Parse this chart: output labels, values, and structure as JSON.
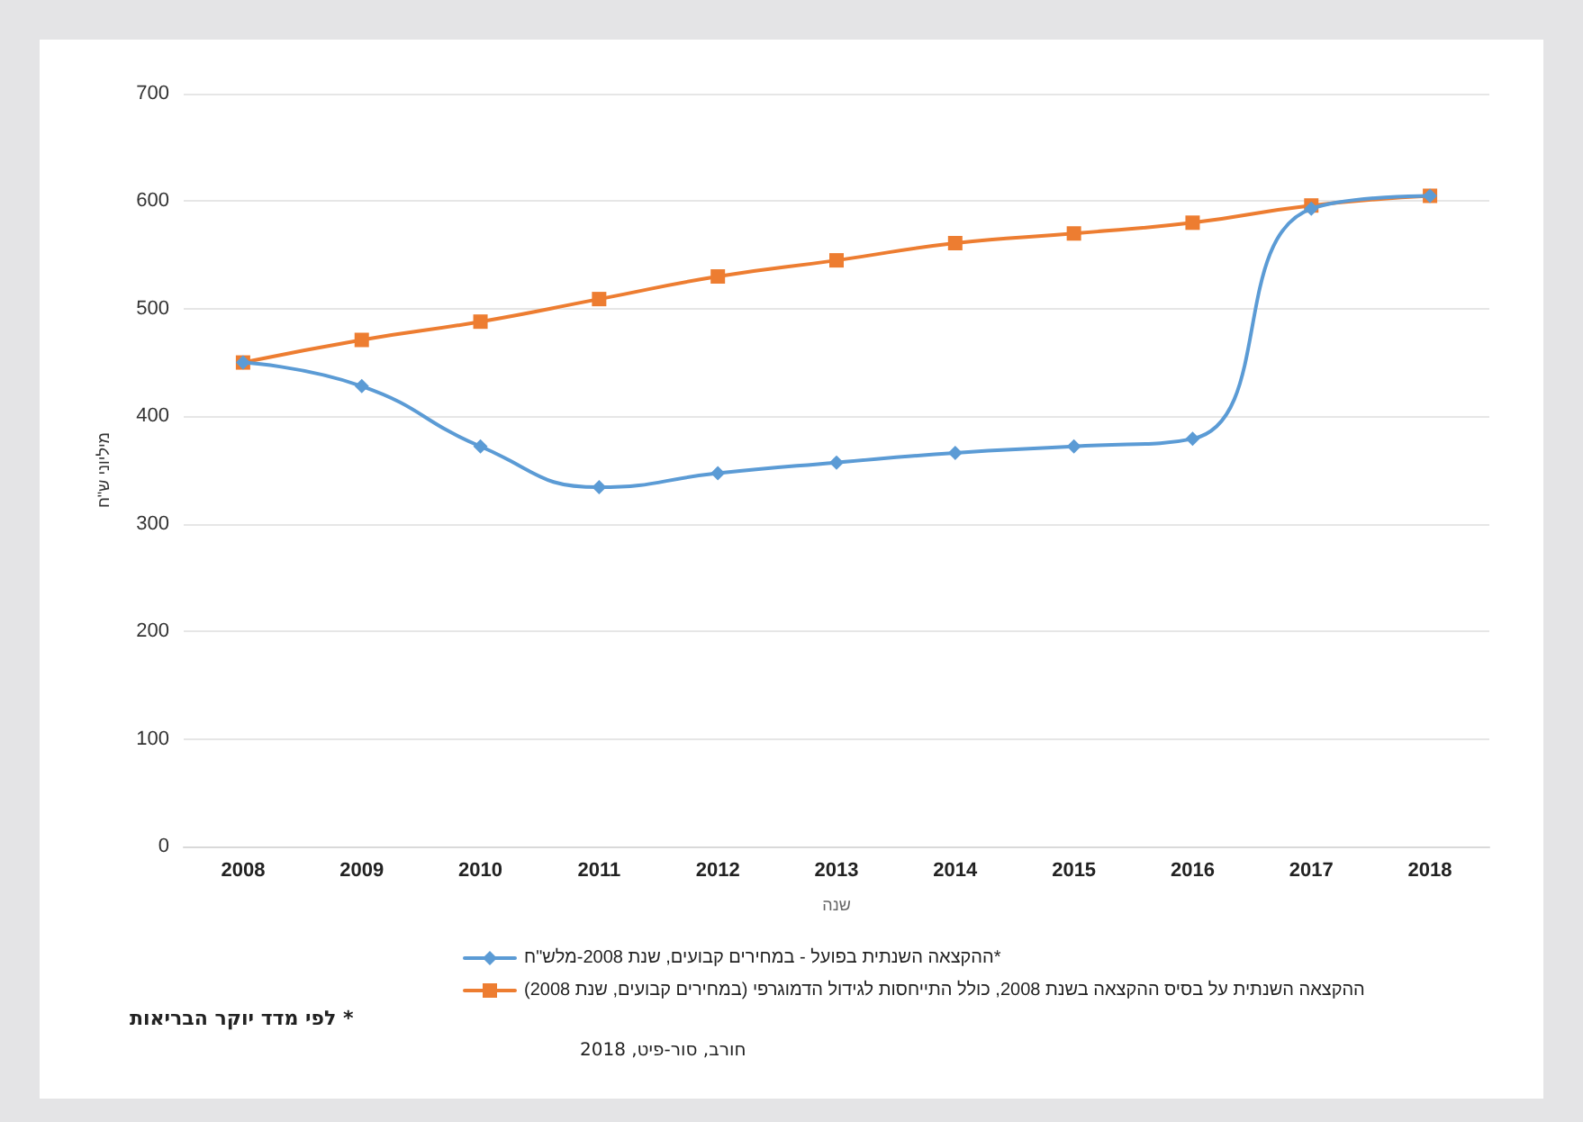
{
  "chart_data": {
    "type": "line",
    "xlabel": "שנה",
    "ylabel": "מיליוני ש\"ח",
    "categories": [
      "2008",
      "2009",
      "2010",
      "2011",
      "2012",
      "2013",
      "2014",
      "2015",
      "2016",
      "2017",
      "2018"
    ],
    "series": [
      {
        "name": "ההקצאה השנתית בפועל - במחירים קבועים, שנת 2008-מלש\"ח*",
        "color": "#5b9bd5",
        "marker": "diamond",
        "values": [
          450,
          428,
          372,
          334,
          347,
          357,
          366,
          372,
          379,
          593,
          605
        ]
      },
      {
        "name": "ההקצאה השנתית על בסיס ההקצאה בשנת 2008, כולל התייחסות לגידול הדמוגרפי (במחירים קבועים, שנת 2008)",
        "color": "#ed7d31",
        "marker": "square",
        "values": [
          450,
          471,
          488,
          509,
          530,
          545,
          561,
          570,
          580,
          596,
          605
        ]
      }
    ],
    "ylim": [
      0,
      700
    ],
    "yticks": [
      0,
      100,
      200,
      300,
      400,
      500,
      600,
      700
    ],
    "grid": "y",
    "legend": "bottom",
    "line_style": "solid",
    "annotations": [
      "חורב, סור-פיט, 2018",
      "* לפי מדד יוקר הבריאות"
    ]
  }
}
